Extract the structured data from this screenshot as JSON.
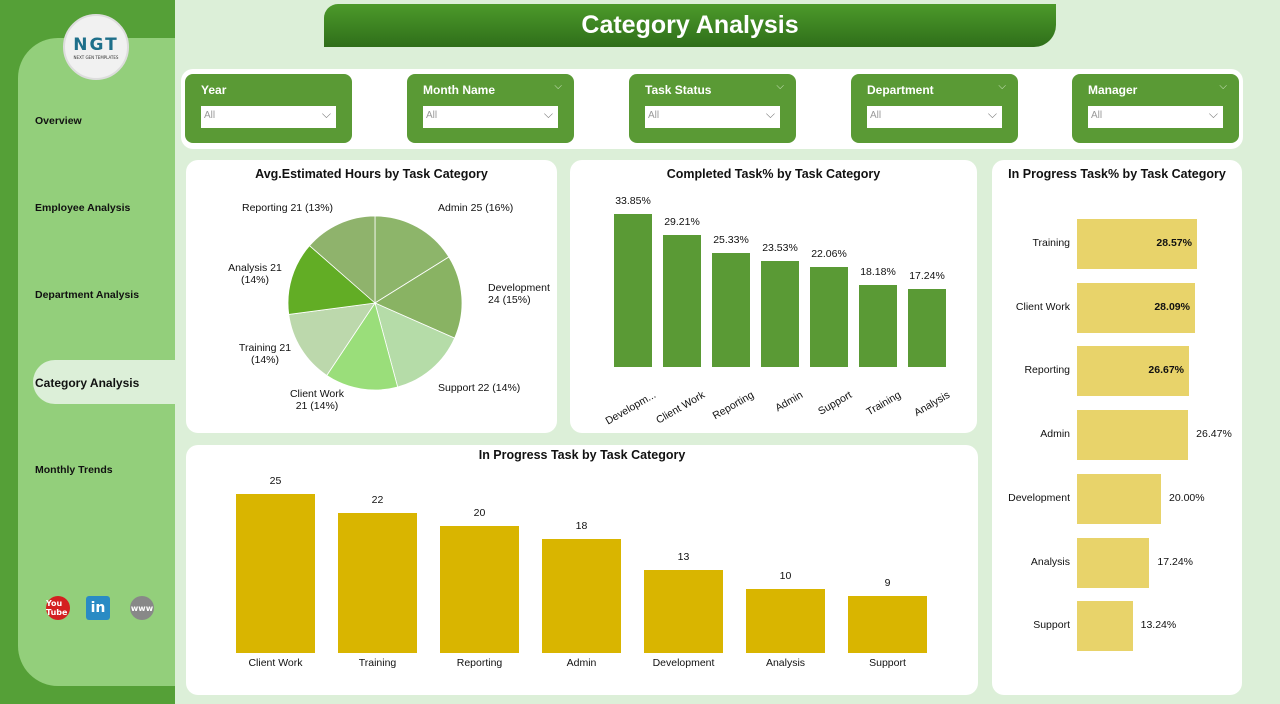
{
  "header": {
    "title": "Category Analysis"
  },
  "logo": {
    "text": "NGT",
    "subtext": "NEXT GEN TEMPLATES"
  },
  "sidebar": {
    "items": [
      {
        "label": "Overview"
      },
      {
        "label": "Employee Analysis"
      },
      {
        "label": "Department Analysis"
      },
      {
        "label": "Category Analysis",
        "active": true
      },
      {
        "label": "Monthly Trends"
      }
    ],
    "social": [
      {
        "icon": "youtube-icon",
        "text": "You Tube",
        "color": "#d42020"
      },
      {
        "icon": "linkedin-icon",
        "text": "in",
        "color": "#2a8bc4"
      },
      {
        "icon": "globe-icon",
        "text": "www",
        "color": "#888888"
      }
    ]
  },
  "filters": [
    {
      "label": "Year",
      "value": "All"
    },
    {
      "label": "Month Name",
      "value": "All"
    },
    {
      "label": "Task Status",
      "value": "All"
    },
    {
      "label": "Department",
      "value": "All"
    },
    {
      "label": "Manager",
      "value": "All"
    }
  ],
  "colors": {
    "green_bar": "#5a9a35",
    "yellow_bar": "#d9b500",
    "light_yellow_bar": "#e8d36a"
  },
  "chart_data": [
    {
      "type": "pie",
      "title": "Avg.Estimated Hours by Task Category",
      "categories": [
        "Admin",
        "Development",
        "Support",
        "Client Work",
        "Training",
        "Analysis",
        "Reporting"
      ],
      "values": [
        25,
        24,
        22,
        21,
        21,
        21,
        21
      ],
      "labels": [
        "Admin 25 (16%)",
        "Development 24 (15%)",
        "Support 22 (14%)",
        "Client Work 21 (14%)",
        "Training 21 (14%)",
        "Analysis 21 (14%)",
        "Reporting 21 (13%)"
      ],
      "colors": [
        "#8db56a",
        "#89b363",
        "#b5dca8",
        "#9ade7a",
        "#bcd8ac",
        "#62ad25",
        "#8fb36c"
      ]
    },
    {
      "type": "bar",
      "title": "Completed Task% by Task Category",
      "categories": [
        "Developm...",
        "Client Work",
        "Reporting",
        "Admin",
        "Support",
        "Training",
        "Analysis"
      ],
      "values": [
        33.85,
        29.21,
        25.33,
        23.53,
        22.06,
        18.18,
        17.24
      ],
      "labels": [
        "33.85%",
        "29.21%",
        "25.33%",
        "23.53%",
        "22.06%",
        "18.18%",
        "17.24%"
      ]
    },
    {
      "type": "bar",
      "title": "In Progress Task by Task Category",
      "categories": [
        "Client Work",
        "Training",
        "Reporting",
        "Admin",
        "Development",
        "Analysis",
        "Support"
      ],
      "values": [
        25,
        22,
        20,
        18,
        13,
        10,
        9
      ],
      "labels": [
        "25",
        "22",
        "20",
        "18",
        "13",
        "10",
        "9"
      ]
    },
    {
      "type": "bar",
      "orientation": "horizontal",
      "title": "In Progress Task% by Task Category",
      "categories": [
        "Training",
        "Client Work",
        "Reporting",
        "Admin",
        "Development",
        "Analysis",
        "Support"
      ],
      "values": [
        28.57,
        28.09,
        26.67,
        26.47,
        20.0,
        17.24,
        13.24
      ],
      "labels": [
        "28.57%",
        "28.09%",
        "26.67%",
        "26.47%",
        "20.00%",
        "17.24%",
        "13.24%"
      ]
    }
  ]
}
